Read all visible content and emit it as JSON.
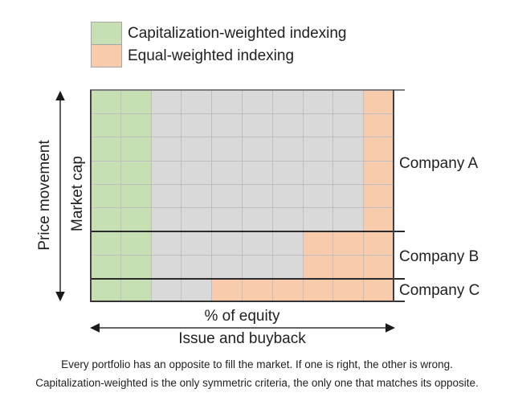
{
  "legend": {
    "items": [
      {
        "label": "Capitalization-weighted indexing",
        "color": "#c6e0b4"
      },
      {
        "label": "Equal-weighted indexing",
        "color": "#f8cbad"
      }
    ]
  },
  "colors": {
    "green": "#c6e0b4",
    "orange": "#f8cbad",
    "gray": "#d9d9d9",
    "gridline": "#bfbfbf",
    "frame": "#2b2b2b",
    "text": "#1f1f1f"
  },
  "grid": {
    "columns": 10,
    "sections": [
      {
        "company": "Company A",
        "rows": 6,
        "cell_colors": [
          "green",
          "green",
          "gray",
          "gray",
          "gray",
          "gray",
          "gray",
          "gray",
          "gray",
          "orange"
        ]
      },
      {
        "company": "Company B",
        "rows": 2,
        "cell_colors": [
          "green",
          "green",
          "gray",
          "gray",
          "gray",
          "gray",
          "gray",
          "orange",
          "orange",
          "orange"
        ]
      },
      {
        "company": "Company C",
        "rows": 1,
        "cell_colors": [
          "green",
          "green",
          "gray",
          "gray",
          "orange",
          "orange",
          "orange",
          "orange",
          "orange",
          "orange"
        ]
      }
    ]
  },
  "axes": {
    "price_movement": "Price movement",
    "market_cap": "Market cap",
    "equity": "% of equity",
    "issue_buyback": "Issue and buyback"
  },
  "caption": {
    "line1": "Every portfolio has an opposite to fill the market. If one is right, the other is wrong.",
    "line2": "Capitalization-weighted is the only symmetric criteria, the only one that matches its opposite."
  }
}
